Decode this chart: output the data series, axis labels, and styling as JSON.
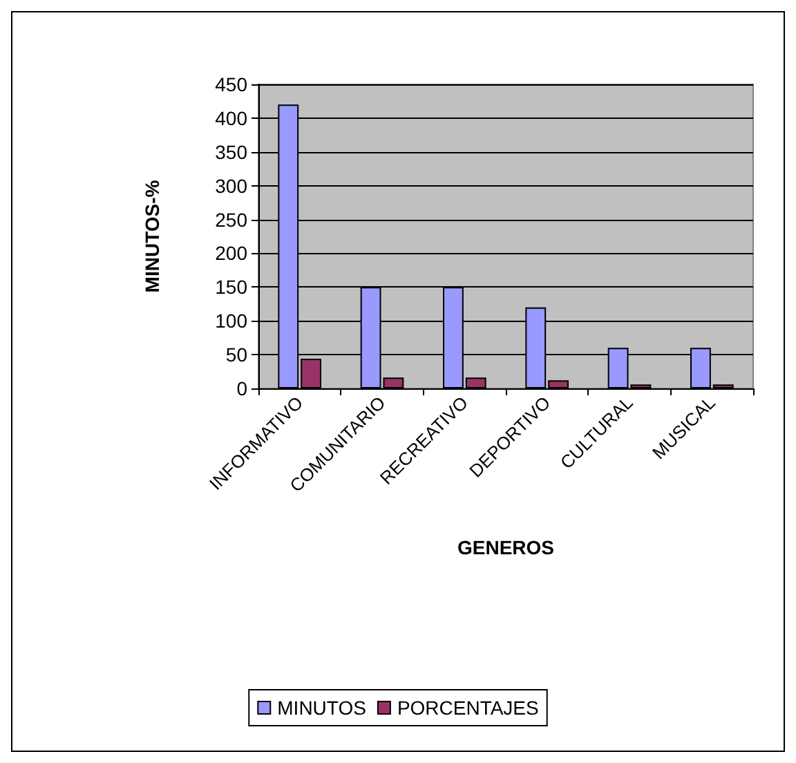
{
  "chart_data": {
    "type": "bar",
    "xlabel": "GENEROS",
    "ylabel": "MINUTOS-%",
    "categories": [
      "INFORMATIVO",
      "COMUNITARIO",
      "RECREATIVO",
      "DEPORTIVO",
      "CULTURAL",
      "MUSICAL"
    ],
    "series": [
      {
        "name": "MINUTOS",
        "color": "#9999ff",
        "values": [
          420,
          150,
          150,
          120,
          60,
          60
        ]
      },
      {
        "name": "PORCENTAJES",
        "color": "#993366",
        "values": [
          44,
          16,
          16,
          12,
          6,
          6
        ]
      }
    ],
    "ylim": [
      0,
      450
    ],
    "yticks": [
      0,
      50,
      100,
      150,
      200,
      250,
      300,
      350,
      400,
      450
    ],
    "grid": "y",
    "legend": "bottom"
  }
}
